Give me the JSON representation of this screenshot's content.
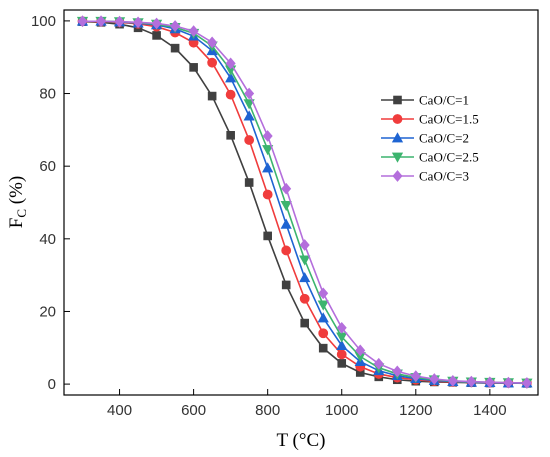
{
  "chart_data": {
    "type": "line",
    "xlabel": "T (°C)",
    "ylabel_main": "F",
    "ylabel_sub": "C",
    "ylabel_rest": " (%)",
    "xlim": [
      250,
      1530
    ],
    "ylim": [
      -3,
      103
    ],
    "xticks": [
      400,
      600,
      800,
      1000,
      1200,
      1400
    ],
    "yticks": [
      0,
      20,
      40,
      60,
      80,
      100
    ],
    "grid": false,
    "legend_position": "right",
    "x": [
      300,
      350,
      400,
      450,
      500,
      550,
      600,
      650,
      700,
      750,
      800,
      850,
      900,
      950,
      1000,
      1050,
      1100,
      1150,
      1200,
      1250,
      1300,
      1350,
      1400,
      1450,
      1500
    ],
    "series": [
      {
        "name": "CaO/C=1",
        "color": "#404040",
        "marker": "square",
        "values": [
          99.8,
          99.6,
          99.1,
          98.1,
          96.0,
          92.5,
          87.2,
          79.3,
          68.5,
          55.5,
          40.8,
          27.3,
          16.8,
          9.9,
          5.7,
          3.2,
          2.0,
          1.2,
          0.8,
          0.6,
          0.5,
          0.4,
          0.3,
          0.3,
          0.2
        ]
      },
      {
        "name": "CaO/C=1.5",
        "color": "#f03c3c",
        "marker": "circle",
        "values": [
          99.9,
          99.8,
          99.6,
          99.2,
          98.4,
          96.8,
          94.0,
          88.5,
          79.7,
          67.2,
          52.2,
          36.8,
          23.5,
          14.0,
          8.2,
          4.8,
          2.8,
          1.8,
          1.2,
          0.8,
          0.6,
          0.5,
          0.4,
          0.3,
          0.3
        ]
      },
      {
        "name": "CaO/C=2",
        "color": "#1e64d2",
        "marker": "triangle-up",
        "values": [
          99.9,
          99.9,
          99.7,
          99.4,
          98.9,
          97.8,
          95.8,
          91.8,
          84.3,
          73.8,
          59.5,
          44.0,
          29.3,
          18.2,
          10.6,
          6.2,
          3.7,
          2.3,
          1.5,
          1.0,
          0.7,
          0.5,
          0.4,
          0.3,
          0.3
        ]
      },
      {
        "name": "CaO/C=2.5",
        "color": "#3cb46e",
        "marker": "triangle-down",
        "values": [
          99.9,
          99.9,
          99.8,
          99.5,
          99.1,
          98.2,
          96.6,
          93.1,
          86.5,
          77.2,
          64.6,
          49.2,
          34.2,
          21.8,
          13.0,
          7.6,
          4.5,
          2.8,
          1.8,
          1.2,
          0.8,
          0.6,
          0.5,
          0.4,
          0.3
        ]
      },
      {
        "name": "CaO/C=3",
        "color": "#b46edc",
        "marker": "diamond",
        "values": [
          99.9,
          99.9,
          99.8,
          99.6,
          99.3,
          98.6,
          97.2,
          94.1,
          88.3,
          80.0,
          68.3,
          53.8,
          38.3,
          25.0,
          15.5,
          9.3,
          5.6,
          3.5,
          2.2,
          1.4,
          0.9,
          0.7,
          0.5,
          0.4,
          0.3
        ]
      }
    ]
  }
}
